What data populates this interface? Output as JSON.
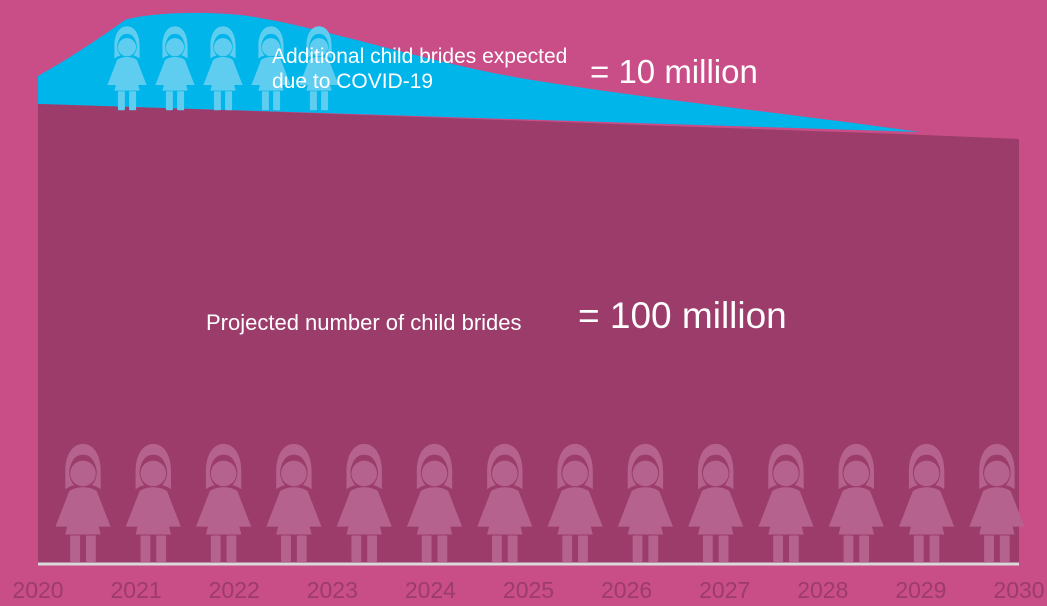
{
  "chart_data": {
    "type": "area",
    "x": [
      "2020",
      "2021",
      "2022",
      "2023",
      "2024",
      "2025",
      "2026",
      "2027",
      "2028",
      "2029",
      "2030"
    ],
    "xlabel": "",
    "ylabel": "",
    "series": [
      {
        "key": "projected",
        "label": "Projected number of child brides",
        "total_label": "= 100 million",
        "color": "#9b3c6a",
        "icon_color": "#b5628e",
        "icon_count": 14
      },
      {
        "key": "covid",
        "label": "Additional child brides expected due to COVID-19",
        "total_label": "= 10 million",
        "color": "#00b5ea",
        "icon_color": "#5fcdf0",
        "icon_count": 5
      }
    ],
    "icon": "girl-silhouette-icon",
    "background": "#c94d87",
    "axis_color": "#d9d9d9"
  }
}
